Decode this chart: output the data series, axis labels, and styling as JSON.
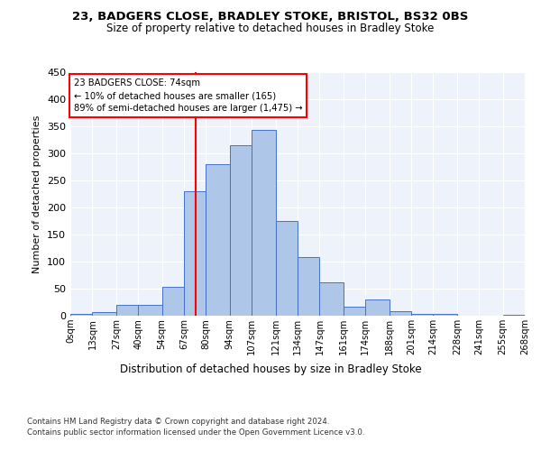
{
  "title1": "23, BADGERS CLOSE, BRADLEY STOKE, BRISTOL, BS32 0BS",
  "title2": "Size of property relative to detached houses in Bradley Stoke",
  "xlabel": "Distribution of detached houses by size in Bradley Stoke",
  "ylabel": "Number of detached properties",
  "bin_labels": [
    "0sqm",
    "13sqm",
    "27sqm",
    "40sqm",
    "54sqm",
    "67sqm",
    "80sqm",
    "94sqm",
    "107sqm",
    "121sqm",
    "134sqm",
    "147sqm",
    "161sqm",
    "174sqm",
    "188sqm",
    "201sqm",
    "214sqm",
    "228sqm",
    "241sqm",
    "255sqm",
    "268sqm"
  ],
  "bin_edges": [
    0,
    13,
    27,
    40,
    54,
    67,
    80,
    94,
    107,
    121,
    134,
    147,
    161,
    174,
    188,
    201,
    214,
    228,
    241,
    255,
    268
  ],
  "bar_heights": [
    3,
    6,
    20,
    20,
    54,
    230,
    280,
    315,
    343,
    175,
    108,
    62,
    17,
    30,
    8,
    4,
    4,
    0,
    0,
    2
  ],
  "bar_color": "#aec6e8",
  "bar_edgecolor": "#4472c4",
  "vline_x": 74,
  "vline_color": "red",
  "annotation_text": "23 BADGERS CLOSE: 74sqm\n← 10% of detached houses are smaller (165)\n89% of semi-detached houses are larger (1,475) →",
  "annotation_box_color": "white",
  "annotation_box_edgecolor": "red",
  "footnote1": "Contains HM Land Registry data © Crown copyright and database right 2024.",
  "footnote2": "Contains public sector information licensed under the Open Government Licence v3.0.",
  "ylim": [
    0,
    450
  ],
  "yticks": [
    0,
    50,
    100,
    150,
    200,
    250,
    300,
    350,
    400,
    450
  ],
  "background_color": "#eef2fb"
}
